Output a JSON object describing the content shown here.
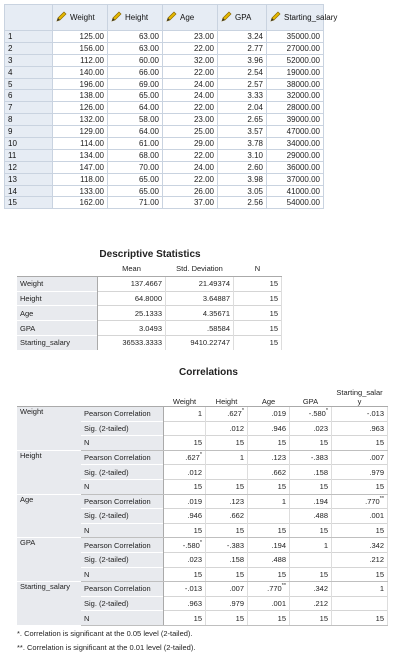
{
  "data_view": {
    "columns": [
      "Weight",
      "Height",
      "Age",
      "GPA",
      "Starting_salary"
    ],
    "column_icon": "pencil-icon",
    "rows": [
      {
        "num": "1",
        "cells": [
          "125.00",
          "63.00",
          "23.00",
          "3.24",
          "35000.00"
        ]
      },
      {
        "num": "2",
        "cells": [
          "156.00",
          "63.00",
          "22.00",
          "2.77",
          "27000.00"
        ]
      },
      {
        "num": "3",
        "cells": [
          "112.00",
          "60.00",
          "32.00",
          "3.96",
          "52000.00"
        ]
      },
      {
        "num": "4",
        "cells": [
          "140.00",
          "66.00",
          "22.00",
          "2.54",
          "19000.00"
        ]
      },
      {
        "num": "5",
        "cells": [
          "196.00",
          "69.00",
          "24.00",
          "2.57",
          "38000.00"
        ]
      },
      {
        "num": "6",
        "cells": [
          "138.00",
          "65.00",
          "24.00",
          "3.33",
          "32000.00"
        ]
      },
      {
        "num": "7",
        "cells": [
          "126.00",
          "64.00",
          "22.00",
          "2.04",
          "28000.00"
        ]
      },
      {
        "num": "8",
        "cells": [
          "132.00",
          "58.00",
          "23.00",
          "2.65",
          "39000.00"
        ]
      },
      {
        "num": "9",
        "cells": [
          "129.00",
          "64.00",
          "25.00",
          "3.57",
          "47000.00"
        ]
      },
      {
        "num": "10",
        "cells": [
          "114.00",
          "61.00",
          "29.00",
          "3.78",
          "34000.00"
        ]
      },
      {
        "num": "11",
        "cells": [
          "134.00",
          "68.00",
          "22.00",
          "3.10",
          "29000.00"
        ]
      },
      {
        "num": "12",
        "cells": [
          "147.00",
          "70.00",
          "24.00",
          "2.60",
          "36000.00"
        ]
      },
      {
        "num": "13",
        "cells": [
          "118.00",
          "65.00",
          "22.00",
          "3.98",
          "37000.00"
        ]
      },
      {
        "num": "14",
        "cells": [
          "133.00",
          "65.00",
          "26.00",
          "3.05",
          "41000.00"
        ]
      },
      {
        "num": "15",
        "cells": [
          "162.00",
          "71.00",
          "37.00",
          "2.56",
          "54000.00"
        ]
      }
    ]
  },
  "descriptive": {
    "title": "Descriptive Statistics",
    "headers": [
      "Mean",
      "Std. Deviation",
      "N"
    ],
    "rows": [
      {
        "label": "Weight",
        "mean": "137.4667",
        "sd": "21.49374",
        "n": "15"
      },
      {
        "label": "Height",
        "mean": "64.8000",
        "sd": "3.64887",
        "n": "15"
      },
      {
        "label": "Age",
        "mean": "25.1333",
        "sd": "4.35671",
        "n": "15"
      },
      {
        "label": "GPA",
        "mean": "3.0493",
        "sd": ".58584",
        "n": "15"
      },
      {
        "label": "Starting_salary",
        "mean": "36533.3333",
        "sd": "9410.22747",
        "n": "15"
      }
    ]
  },
  "correlations": {
    "title": "Correlations",
    "columns": [
      "Weight",
      "Height",
      "Age",
      "GPA",
      "Starting_salar y"
    ],
    "stat_labels": [
      "Pearson Correlation",
      "Sig. (2-tailed)",
      "N"
    ],
    "groups": [
      {
        "var": "Weight",
        "pearson": [
          {
            "v": "1",
            "s": ""
          },
          {
            "v": ".627",
            "s": "*"
          },
          {
            "v": ".019",
            "s": ""
          },
          {
            "v": "-.580",
            "s": "*"
          },
          {
            "v": "-.013",
            "s": ""
          }
        ],
        "sig": [
          "",
          ".012",
          ".946",
          ".023",
          ".963"
        ],
        "n": [
          "15",
          "15",
          "15",
          "15",
          "15"
        ]
      },
      {
        "var": "Height",
        "pearson": [
          {
            "v": ".627",
            "s": "*"
          },
          {
            "v": "1",
            "s": ""
          },
          {
            "v": ".123",
            "s": ""
          },
          {
            "v": "-.383",
            "s": ""
          },
          {
            "v": ".007",
            "s": ""
          }
        ],
        "sig": [
          ".012",
          "",
          ".662",
          ".158",
          ".979"
        ],
        "n": [
          "15",
          "15",
          "15",
          "15",
          "15"
        ]
      },
      {
        "var": "Age",
        "pearson": [
          {
            "v": ".019",
            "s": ""
          },
          {
            "v": ".123",
            "s": ""
          },
          {
            "v": "1",
            "s": ""
          },
          {
            "v": ".194",
            "s": ""
          },
          {
            "v": ".770",
            "s": "**"
          }
        ],
        "sig": [
          ".946",
          ".662",
          "",
          ".488",
          ".001"
        ],
        "n": [
          "15",
          "15",
          "15",
          "15",
          "15"
        ]
      },
      {
        "var": "GPA",
        "pearson": [
          {
            "v": "-.580",
            "s": "*"
          },
          {
            "v": "-.383",
            "s": ""
          },
          {
            "v": ".194",
            "s": ""
          },
          {
            "v": "1",
            "s": ""
          },
          {
            "v": ".342",
            "s": ""
          }
        ],
        "sig": [
          ".023",
          ".158",
          ".488",
          "",
          ".212"
        ],
        "n": [
          "15",
          "15",
          "15",
          "15",
          "15"
        ]
      },
      {
        "var": "Starting_salary",
        "pearson": [
          {
            "v": "-.013",
            "s": ""
          },
          {
            "v": ".007",
            "s": ""
          },
          {
            "v": ".770",
            "s": "**"
          },
          {
            "v": ".342",
            "s": ""
          },
          {
            "v": "1",
            "s": ""
          }
        ],
        "sig": [
          ".963",
          ".979",
          ".001",
          ".212",
          ""
        ],
        "n": [
          "15",
          "15",
          "15",
          "15",
          "15"
        ]
      }
    ],
    "footnotes": [
      "*. Correlation is significant at the 0.05 level (2-tailed).",
      "**. Correlation is significant at the 0.01 level (2-tailed)."
    ]
  }
}
